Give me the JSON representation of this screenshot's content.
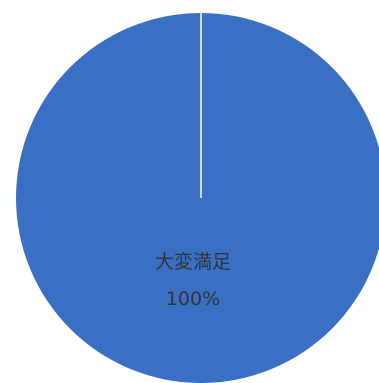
{
  "chart_data": {
    "type": "pie",
    "slices": [
      {
        "label": "大変満足",
        "value": 100,
        "display": "100%",
        "color": "#3a70c3"
      }
    ],
    "separator_color": "#ffffff",
    "background": "#ffffff"
  }
}
